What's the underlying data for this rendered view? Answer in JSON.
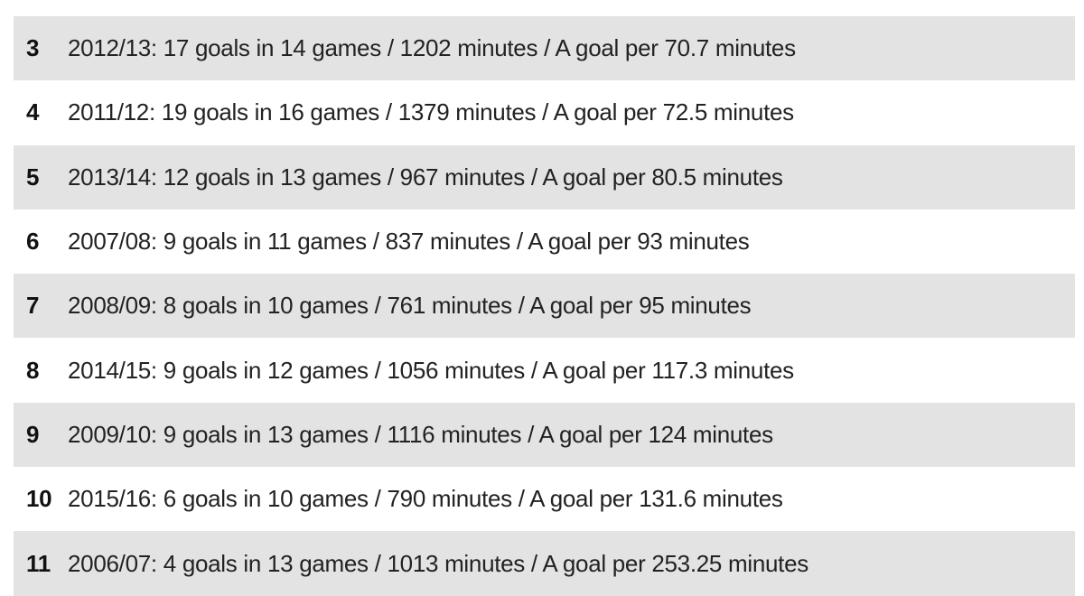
{
  "rows": [
    {
      "rank": "3",
      "text": "2012/13: 17 goals in 14 games / 1202 minutes / A goal per 70.7 minutes"
    },
    {
      "rank": "4",
      "text": "2011/12: 19 goals in 16 games / 1379 minutes / A goal per 72.5 minutes"
    },
    {
      "rank": "5",
      "text": "2013/14: 12 goals in 13 games / 967 minutes / A goal per 80.5 minutes"
    },
    {
      "rank": "6",
      "text": "2007/08: 9 goals in 11 games / 837 minutes / A goal per 93 minutes"
    },
    {
      "rank": "7",
      "text": "2008/09: 8 goals in 10 games / 761 minutes / A goal per 95 minutes"
    },
    {
      "rank": "8",
      "text": "2014/15: 9 goals in 12 games / 1056 minutes / A goal per 117.3 minutes"
    },
    {
      "rank": "9",
      "text": "2009/10: 9 goals in 13 games / 1116 minutes / A goal per 124 minutes"
    },
    {
      "rank": "10",
      "text": "2015/16: 6 goals in 10 games / 790 minutes / A goal per 131.6 minutes"
    },
    {
      "rank": "11",
      "text": "2006/07: 4 goals in 13 games / 1013 minutes / A goal per 253.25 minutes"
    }
  ]
}
